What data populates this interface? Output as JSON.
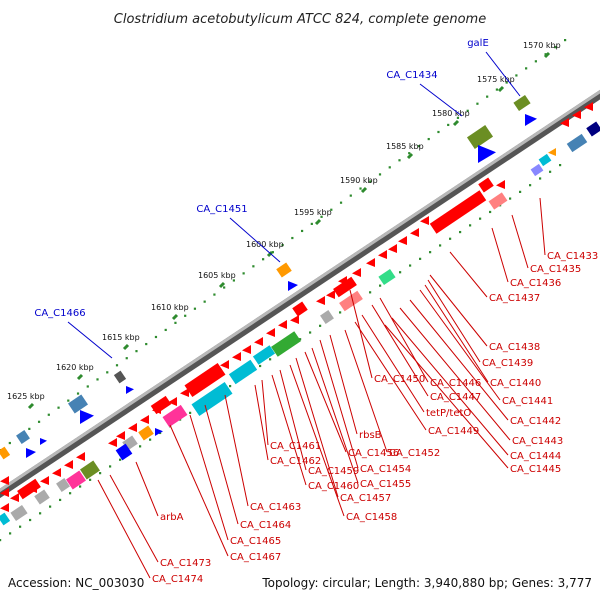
{
  "title": "Clostridium acetobutylicum ATCC 824, complete genome",
  "footer": {
    "accession": "Accession: NC_003030",
    "summary": "Topology: circular; Length: 3,940,880 bp; Genes: 3,777"
  },
  "colors": {
    "backbone": "#7a7a7a",
    "tick": "#2e8b2e",
    "forward_label": "#0000cc",
    "reverse_label": "#cc0000",
    "gene_red": "#ff0000",
    "gene_blue": "#0000ff",
    "gene_olive": "#6b8e23",
    "gene_steel": "#4682b4",
    "gene_cyan": "#00bcd4",
    "gene_orange": "#ff9900",
    "gene_pink": "#ff3399",
    "gene_green": "#33aa33",
    "gene_grey": "#aaaaaa",
    "gene_salmon": "#ff8080",
    "gene_mint": "#33dd88"
  },
  "kbp_labels": [
    "1570 kbp",
    "1575 kbp",
    "1580 kbp",
    "1585 kbp",
    "1590 kbp",
    "1595 kbp",
    "1600 kbp",
    "1605 kbp",
    "1610 kbp",
    "1615 kbp",
    "1620 kbp",
    "1625 kbp"
  ],
  "forward_labels": [
    "galE",
    "CA_C1434",
    "CA_C1451",
    "CA_C1466"
  ],
  "reverse_labels_right": [
    "CA_C1433",
    "CA_C1435",
    "CA_C1436",
    "CA_C1437",
    "CA_C1438",
    "CA_C1439",
    "CA_C1440",
    "CA_C1441",
    "CA_C1442",
    "CA_C1443",
    "CA_C1444",
    "CA_C1445"
  ],
  "reverse_labels_mid": [
    "CA_C1450",
    "CA_C1446",
    "CA_C1447",
    "tetP/tetO",
    "CA_C1449",
    "CA_C1452",
    "rbsB",
    "CA_C1454",
    "CA_C1455",
    "CA_C1456",
    "CA_C1457",
    "CA_C1458",
    "CA_C1459",
    "CA_C1460",
    "CA_C1461",
    "CA_C1462"
  ],
  "reverse_labels_left": [
    "CA_C1463",
    "CA_C1464",
    "CA_C1465",
    "CA_C1467",
    "arbA",
    "CA_C1473",
    "CA_C1474"
  ]
}
